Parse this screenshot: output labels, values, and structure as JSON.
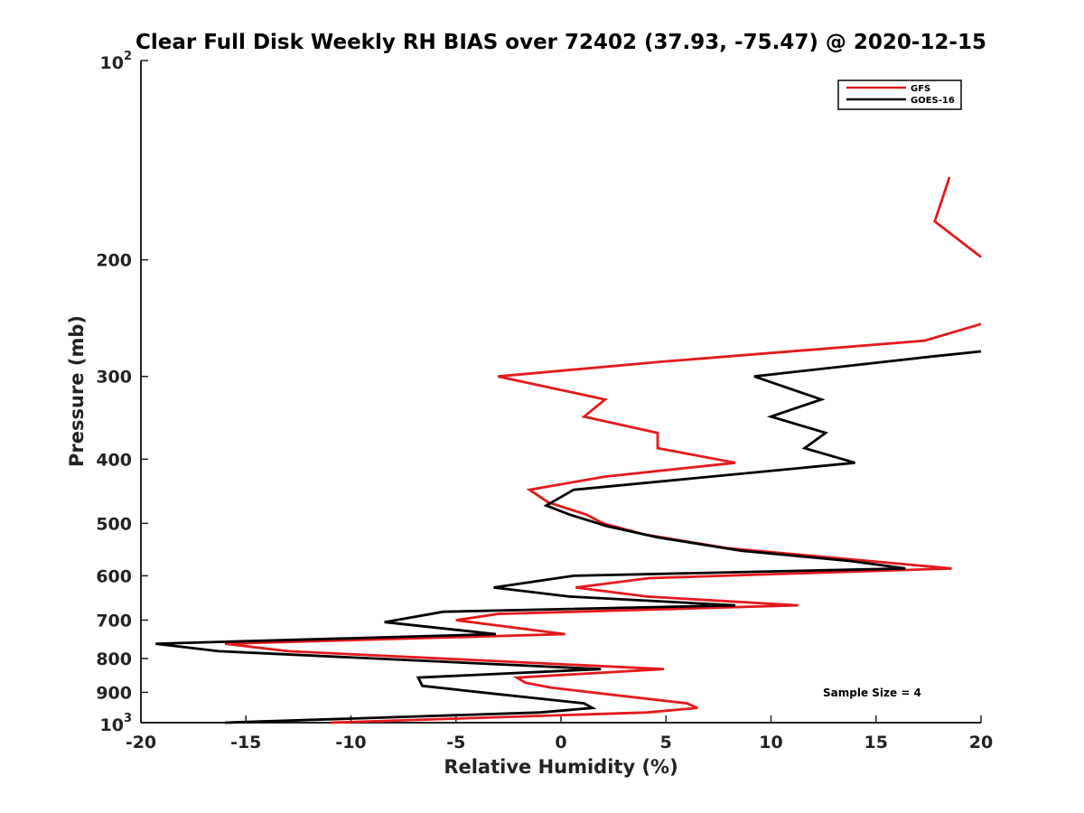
{
  "chart_data": {
    "type": "line",
    "title": "Clear Full Disk Weekly RH BIAS over 72402 (37.93, -75.47) @ 2020-12-15",
    "xlabel": "Relative Humidity (%)",
    "ylabel": "Pressure (mb)",
    "xlim": [
      -20,
      20
    ],
    "ylim": [
      100,
      1000
    ],
    "yscale": "log",
    "yreverse": true,
    "grid": false,
    "legend_position": "top-right",
    "x_ticks": [
      "-20",
      "-15",
      "-10",
      "-5",
      "0",
      "5",
      "10",
      "15",
      "20"
    ],
    "y_ticks": [
      {
        "value": 100,
        "base": "10",
        "exp": "2"
      },
      {
        "value": 200,
        "label": "200"
      },
      {
        "value": 300,
        "label": "300"
      },
      {
        "value": 400,
        "label": "400"
      },
      {
        "value": 500,
        "label": "500"
      },
      {
        "value": 600,
        "label": "600"
      },
      {
        "value": 700,
        "label": "700"
      },
      {
        "value": 800,
        "label": "800"
      },
      {
        "value": 900,
        "label": "900"
      },
      {
        "value": 1000,
        "base": "10",
        "exp": "3"
      }
    ],
    "annotation": "Sample Size = 4",
    "series": [
      {
        "name": "GFS",
        "color": "#e31a1c",
        "segments": [
          [
            [
              18.5,
              150
            ],
            [
              17.8,
              175
            ],
            [
              20.0,
              198
            ]
          ],
          [
            [
              20.0,
              250
            ],
            [
              17.3,
              265
            ],
            [
              4.8,
              285
            ],
            [
              -3.0,
              300
            ],
            [
              2.1,
              325
            ],
            [
              1.1,
              345
            ],
            [
              4.6,
              365
            ],
            [
              4.6,
              385
            ],
            [
              8.3,
              405
            ],
            [
              2.1,
              425
            ],
            [
              -1.5,
              445
            ],
            [
              -0.6,
              465
            ],
            [
              1.2,
              485
            ],
            [
              2.0,
              500
            ],
            [
              4.0,
              520
            ],
            [
              7.9,
              545
            ],
            [
              18.6,
              585
            ],
            [
              4.2,
              605
            ],
            [
              0.7,
              625
            ],
            [
              4.1,
              645
            ],
            [
              11.3,
              665
            ],
            [
              -3.0,
              685
            ],
            [
              -5.0,
              700
            ],
            [
              0.2,
              735
            ],
            [
              -16.0,
              760
            ],
            [
              -13.0,
              780
            ],
            [
              4.9,
              830
            ],
            [
              -2.1,
              855
            ],
            [
              -1.7,
              870
            ],
            [
              -0.5,
              885
            ],
            [
              2.1,
              905
            ],
            [
              6.0,
              935
            ],
            [
              6.5,
              950
            ],
            [
              4.1,
              965
            ],
            [
              -11.0,
              1000
            ]
          ]
        ]
      },
      {
        "name": "GOES-16",
        "color": "#000000",
        "segments": [
          [
            [
              20.0,
              275
            ],
            [
              17.6,
              280
            ],
            [
              9.2,
              300
            ],
            [
              12.4,
              325
            ],
            [
              10.0,
              345
            ],
            [
              12.6,
              365
            ],
            [
              11.6,
              385
            ],
            [
              14.0,
              405
            ],
            [
              0.6,
              445
            ],
            [
              -0.7,
              470
            ],
            [
              0.4,
              485
            ],
            [
              2.2,
              505
            ],
            [
              4.6,
              525
            ],
            [
              8.6,
              550
            ],
            [
              13.8,
              570
            ],
            [
              16.4,
              585
            ],
            [
              0.6,
              600
            ],
            [
              -3.2,
              625
            ],
            [
              0.4,
              645
            ],
            [
              8.3,
              665
            ],
            [
              -5.6,
              680
            ],
            [
              -8.4,
              705
            ],
            [
              -3.1,
              735
            ],
            [
              -19.3,
              760
            ],
            [
              -16.3,
              780
            ],
            [
              1.9,
              830
            ],
            [
              -6.8,
              855
            ],
            [
              -6.6,
              880
            ],
            [
              -3.1,
              905
            ],
            [
              1.1,
              935
            ],
            [
              1.5,
              950
            ],
            [
              -1.0,
              965
            ],
            [
              -16.0,
              1000
            ]
          ]
        ]
      }
    ]
  }
}
